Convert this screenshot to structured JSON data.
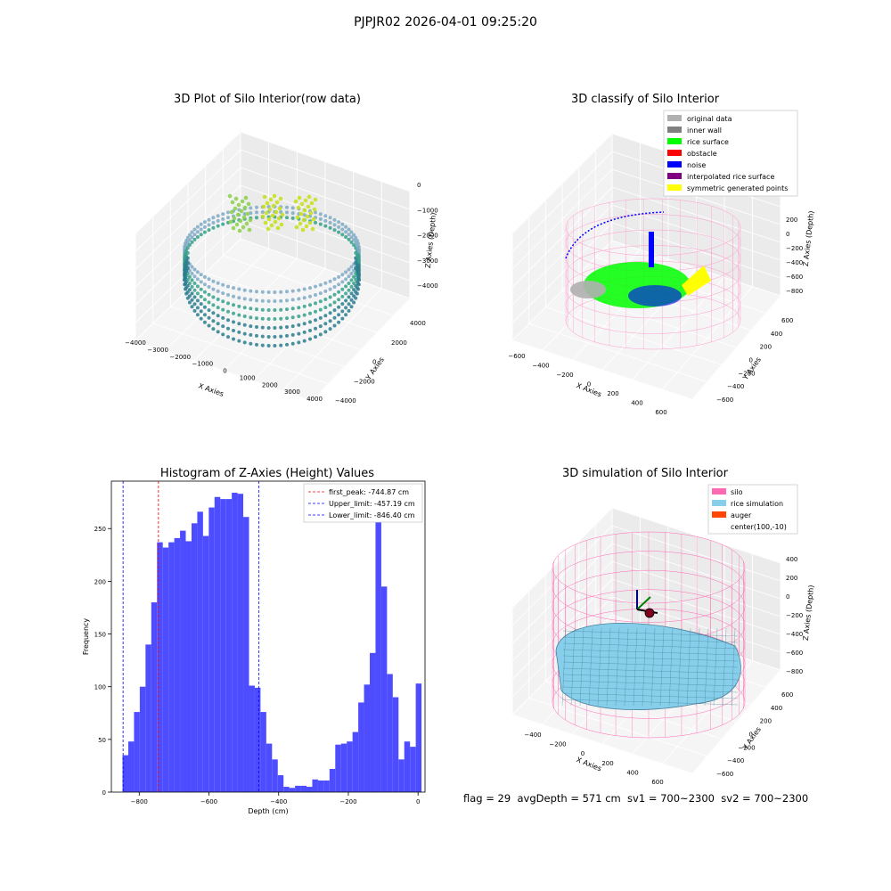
{
  "suptitle": "PJPJR02 2026-04-01 09:25:20",
  "panels": {
    "raw": {
      "title": "3D Plot of Silo Interior(row data)",
      "xlabel": "X Axies",
      "ylabel": "Y Axies",
      "zlabel": "Z Axies (Depth)",
      "xticks": [
        "−4000",
        "−3000",
        "−2000",
        "−1000",
        "0",
        "1000",
        "2000",
        "3000",
        "4000"
      ],
      "yticks": [
        "−4000",
        "−2000",
        "0",
        "2000",
        "4000"
      ],
      "zticks": [
        "−4000",
        "−3000",
        "−2000",
        "−1000",
        "0"
      ]
    },
    "classify": {
      "title": "3D classify of Silo Interior",
      "xlabel": "X Axies",
      "ylabel": "Y Axies",
      "zlabel": "Z Axies (Depth)",
      "xticks": [
        "−600",
        "−400",
        "−200",
        "0",
        "200",
        "400",
        "600"
      ],
      "yticks": [
        "−600",
        "−400",
        "−200",
        "0",
        "200",
        "400",
        "600"
      ],
      "zticks": [
        "−800",
        "−600",
        "−400",
        "−200",
        "0",
        "200"
      ],
      "legend": [
        {
          "label": "original data",
          "color": "#b0b0b0"
        },
        {
          "label": "inner wall",
          "color": "#808080"
        },
        {
          "label": "rice surface",
          "color": "#00ff00"
        },
        {
          "label": "obstacle",
          "color": "#ff0000"
        },
        {
          "label": "noise",
          "color": "#0000ff"
        },
        {
          "label": "interpolated rice surface",
          "color": "#800080"
        },
        {
          "label": "symmetric generated points",
          "color": "#ffff00"
        }
      ]
    },
    "simulation": {
      "title": "3D simulation of Silo Interior",
      "xlabel": "X Axies",
      "ylabel": "Y Axies",
      "zlabel": "Z Axies (Depth)",
      "xticks": [
        "−400",
        "−200",
        "0",
        "200",
        "400",
        "600"
      ],
      "yticks": [
        "−600",
        "−400",
        "−200",
        "0",
        "200",
        "400",
        "600"
      ],
      "zticks": [
        "−800",
        "−600",
        "−400",
        "−200",
        "0",
        "200",
        "400"
      ],
      "legend": [
        {
          "label": "silo",
          "color": "#ff69b4"
        },
        {
          "label": "rice simulation",
          "color": "#87ceeb"
        },
        {
          "label": "auger",
          "color": "#ff4500"
        },
        {
          "label": "center(100,-10)",
          "color": ""
        }
      ]
    }
  },
  "chart_data": {
    "type": "bar",
    "title": "Histogram of Z-Axies (Height) Values",
    "xlabel": "Depth (cm)",
    "ylabel": "Frequency",
    "xlim": [
      -880,
      20
    ],
    "ylim": [
      0,
      295
    ],
    "xticks": [
      -800,
      -600,
      -400,
      -200,
      0
    ],
    "yticks": [
      0,
      50,
      100,
      150,
      200,
      250
    ],
    "bin_width": 16.5,
    "bins_start": -848,
    "values": [
      35,
      48,
      76,
      100,
      140,
      180,
      237,
      232,
      237,
      241,
      248,
      238,
      255,
      266,
      243,
      270,
      280,
      278,
      278,
      284,
      283,
      261,
      101,
      99,
      76,
      46,
      31,
      16,
      5,
      4,
      6,
      6,
      5,
      12,
      11,
      11,
      22,
      45,
      46,
      48,
      57,
      85,
      102,
      132,
      271,
      195,
      112,
      90,
      31,
      48,
      43,
      103
    ],
    "vlines": [
      {
        "label": "first_peak: -744.87 cm",
        "x": -744.87,
        "color": "#ff0000"
      },
      {
        "label": "Upper_limit: -457.19 cm",
        "x": -457.19,
        "color": "#0000ff"
      },
      {
        "label": "Lower_limit: -846.40 cm",
        "x": -846.4,
        "color": "#0000ff"
      }
    ],
    "bar_color": "#4d4dff"
  },
  "status": {
    "text": "flag = 29  avgDepth = 571 cm  sv1 = 700~2300  sv2 = 700~2300"
  }
}
